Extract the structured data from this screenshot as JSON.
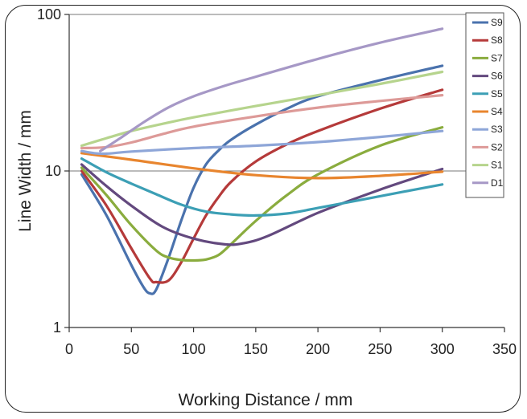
{
  "chart_data": {
    "type": "line",
    "title": "",
    "xlabel": "Working Distance / mm",
    "ylabel": "Line Width / mm",
    "xlim": [
      0,
      350
    ],
    "ylim": [
      1,
      100
    ],
    "y_scale": "log",
    "x_ticks": [
      "0",
      "50",
      "100",
      "150",
      "200",
      "250",
      "300",
      "350"
    ],
    "y_ticks": [
      "1",
      "10",
      "100"
    ],
    "legend_position": "top-right",
    "series": [
      {
        "name": "S9",
        "color": "#4a72ad",
        "x": [
          10,
          30,
          50,
          60,
          65,
          70,
          80,
          90,
          100,
          110,
          120,
          130,
          150,
          175,
          200,
          250,
          300
        ],
        "y": [
          9.5,
          5.2,
          2.5,
          1.8,
          1.65,
          1.75,
          2.8,
          4.8,
          7.8,
          11,
          13.5,
          15.8,
          19.8,
          25,
          30,
          38,
          47
        ]
      },
      {
        "name": "S8",
        "color": "#b53a3a",
        "x": [
          10,
          30,
          50,
          65,
          70,
          80,
          90,
          100,
          110,
          120,
          130,
          150,
          175,
          200,
          250,
          300
        ],
        "y": [
          10,
          6,
          3.2,
          2.05,
          1.95,
          2,
          2.6,
          3.7,
          5.2,
          6.8,
          8.5,
          11.5,
          14.8,
          18,
          25,
          33
        ]
      },
      {
        "name": "S7",
        "color": "#8aac3e",
        "x": [
          10,
          30,
          50,
          70,
          80,
          90,
          100,
          110,
          120,
          130,
          150,
          175,
          200,
          250,
          300
        ],
        "y": [
          10.5,
          7,
          4.5,
          3.1,
          2.8,
          2.7,
          2.68,
          2.72,
          2.9,
          3.4,
          4.8,
          7,
          9.5,
          14.5,
          19
        ]
      },
      {
        "name": "S6",
        "color": "#63497e",
        "x": [
          10,
          30,
          50,
          75,
          100,
          125,
          140,
          160,
          200,
          250,
          300
        ],
        "y": [
          11,
          8,
          6,
          4.4,
          3.7,
          3.4,
          3.45,
          3.85,
          5.4,
          7.6,
          10.3
        ]
      },
      {
        "name": "S5",
        "color": "#3c9fb5",
        "x": [
          10,
          30,
          50,
          70,
          90,
          110,
          130,
          150,
          175,
          200,
          250,
          300
        ],
        "y": [
          12,
          9.8,
          8.3,
          7.1,
          6.1,
          5.5,
          5.28,
          5.2,
          5.35,
          5.8,
          6.9,
          8.2
        ]
      },
      {
        "name": "S4",
        "color": "#e8852e",
        "x": [
          10,
          50,
          100,
          150,
          200,
          250,
          300
        ],
        "y": [
          13,
          11.8,
          10.4,
          9.4,
          9,
          9.3,
          9.9
        ]
      },
      {
        "name": "S3",
        "color": "#8ea6d8",
        "x": [
          10,
          20,
          30,
          50,
          100,
          150,
          200,
          250,
          300
        ],
        "y": [
          13.4,
          13,
          12.9,
          13.3,
          14,
          14.5,
          15.3,
          16.5,
          18
        ]
      },
      {
        "name": "S2",
        "color": "#dd9a98",
        "x": [
          10,
          30,
          50,
          75,
          100,
          150,
          200,
          250,
          300
        ],
        "y": [
          14,
          14.2,
          15.2,
          17.2,
          19.2,
          22.3,
          25.4,
          28,
          30.5
        ]
      },
      {
        "name": "S1",
        "color": "#b6d48d",
        "x": [
          10,
          30,
          50,
          75,
          100,
          150,
          200,
          250,
          300
        ],
        "y": [
          14.5,
          16.2,
          18,
          20,
          22,
          26,
          30.5,
          36,
          43
        ]
      },
      {
        "name": "D1",
        "color": "#a698c6",
        "x": [
          25,
          40,
          60,
          80,
          100,
          125,
          150,
          200,
          250,
          300
        ],
        "y": [
          13.4,
          16,
          20.5,
          25.5,
          30,
          35,
          40,
          52,
          66,
          81
        ]
      }
    ]
  }
}
